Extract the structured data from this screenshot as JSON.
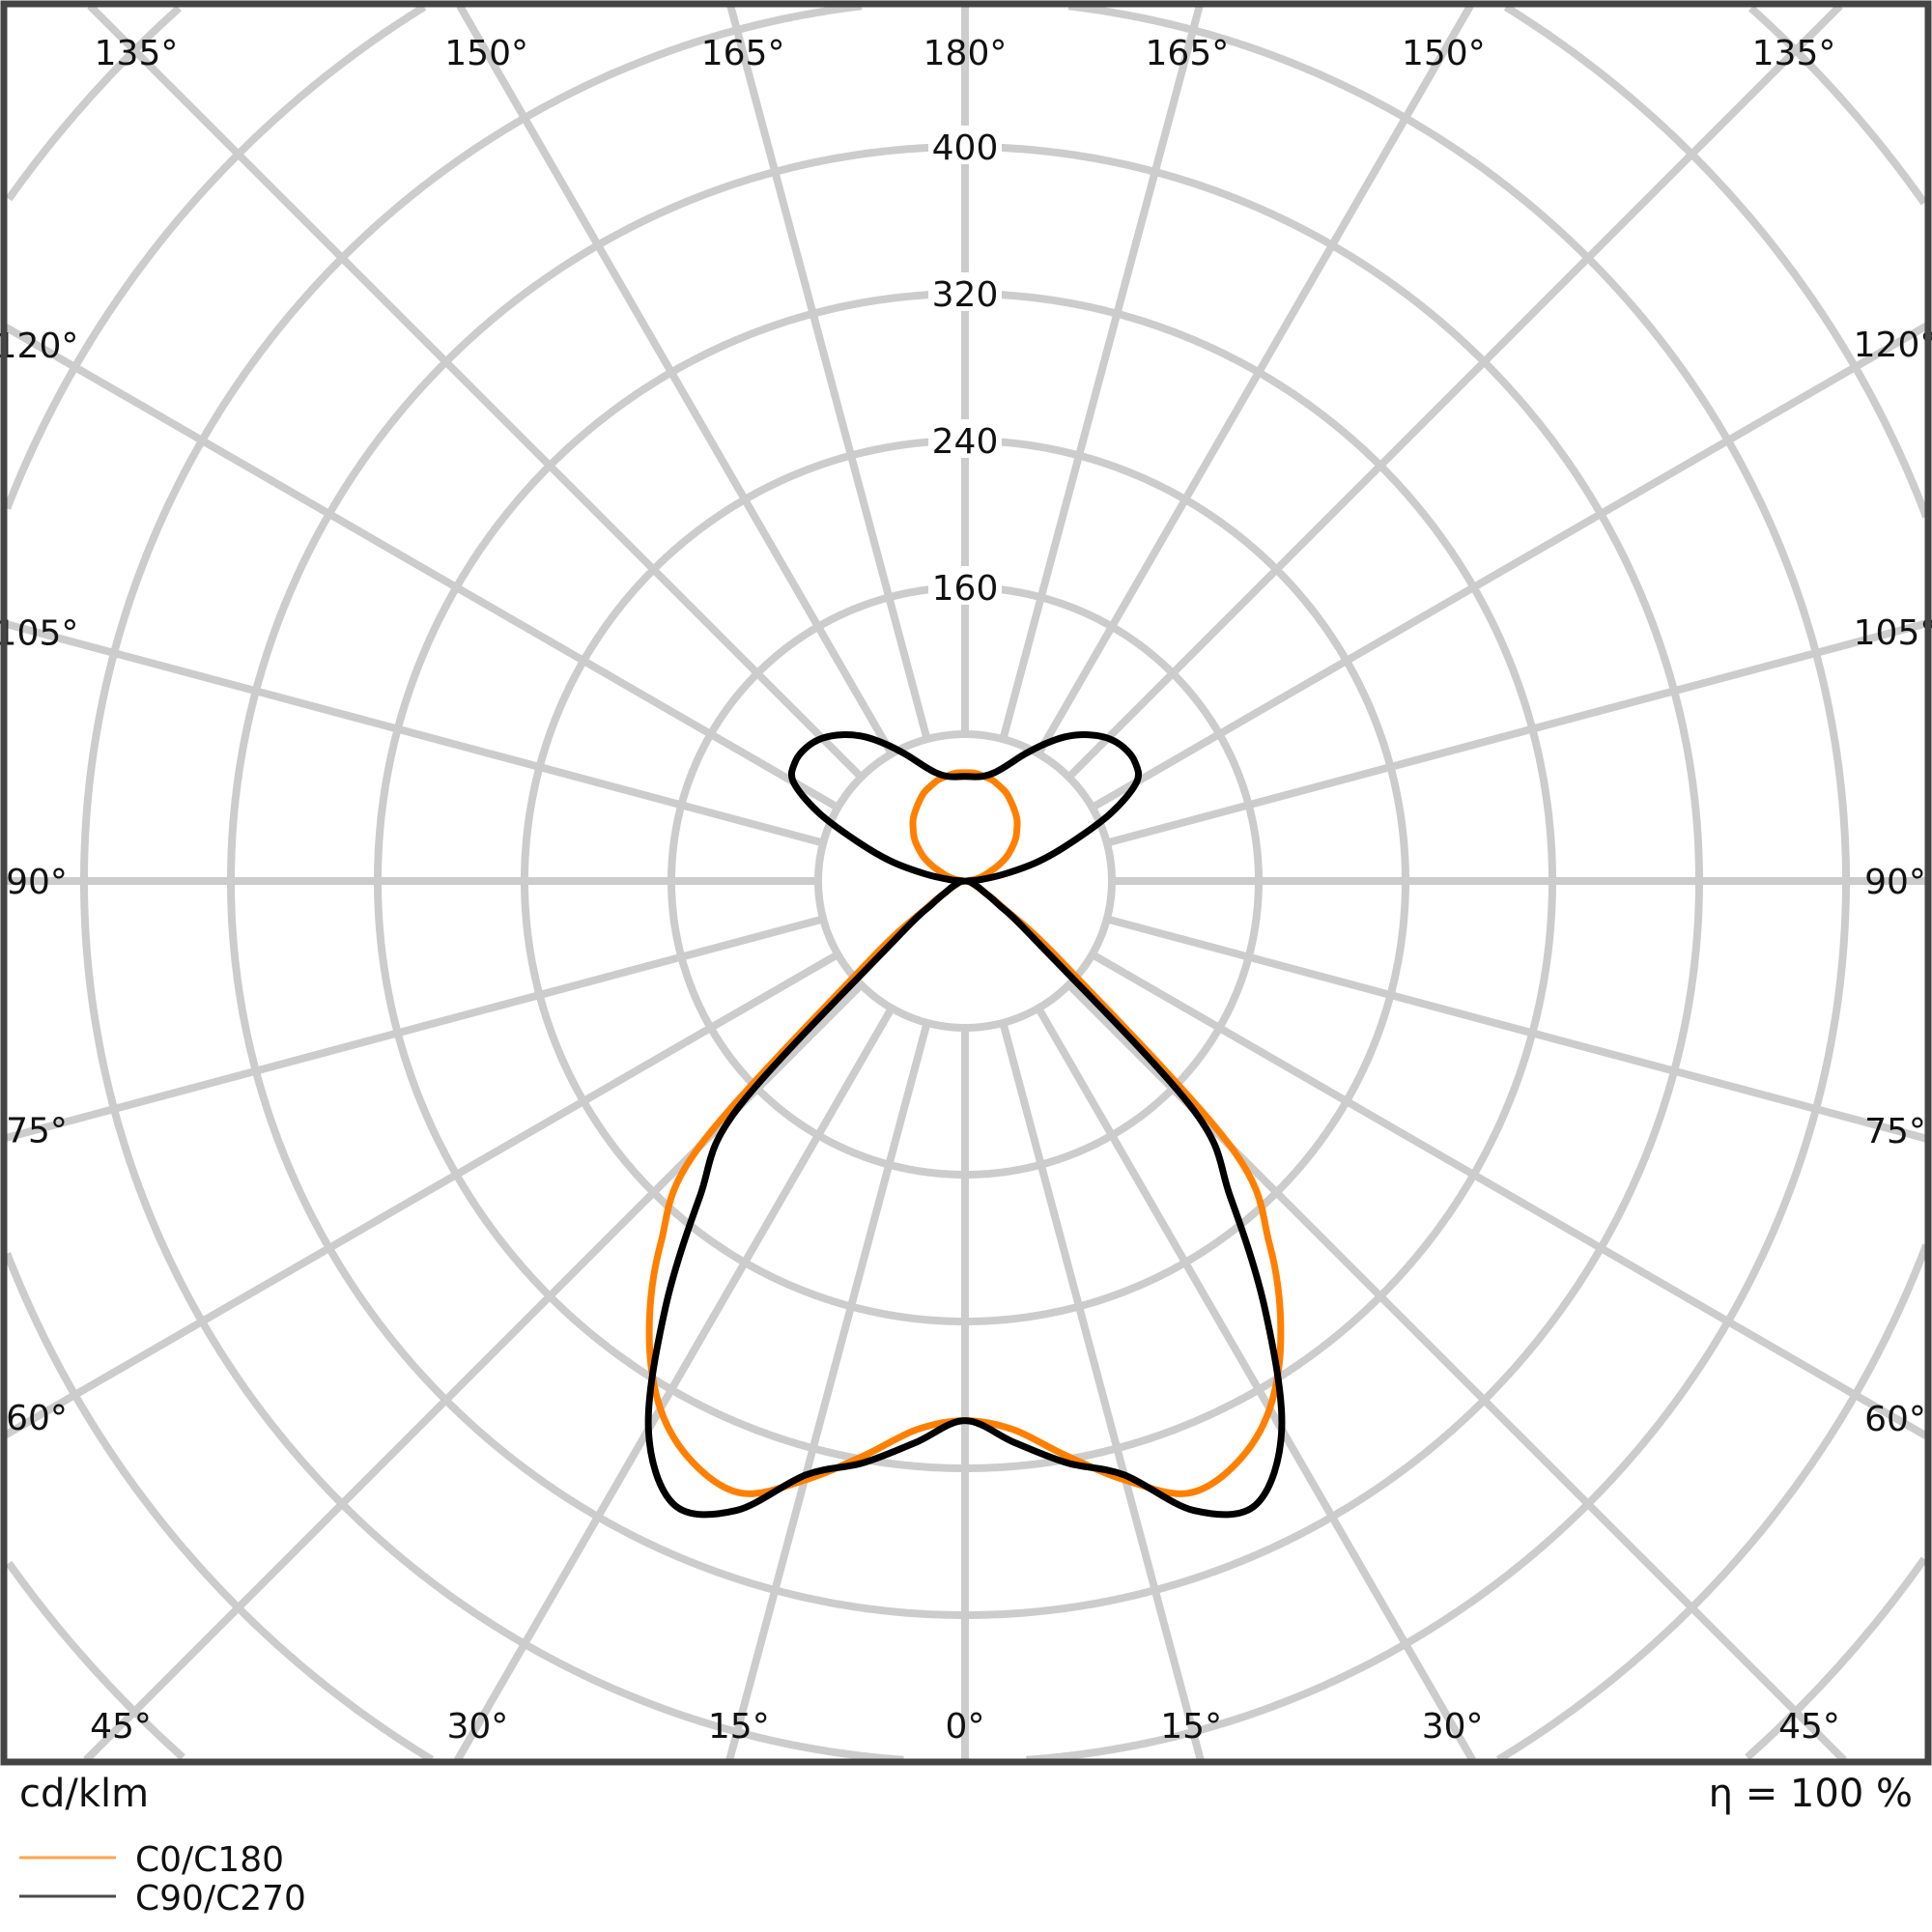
{
  "chart_data": {
    "type": "polar",
    "title": "",
    "unit_label": "cd/klm",
    "efficiency_label": "η = 100 %",
    "radial_ticks": [
      160,
      240,
      320,
      400
    ],
    "radial_grid_step": 80,
    "radial_range": [
      0,
      720
    ],
    "angle_step_deg": 15,
    "angle_labels_top": [
      "135°",
      "150°",
      "165°",
      "180°",
      "165°",
      "150°",
      "135°"
    ],
    "angle_labels_bottom": [
      "45°",
      "30°",
      "15°",
      "0°",
      "15°",
      "30°",
      "45°"
    ],
    "angle_labels_sides": [
      "120°",
      "105°",
      "90°",
      "75°",
      "60°"
    ],
    "grid": true,
    "legend_position": "bottom-left",
    "series": [
      {
        "name": "C0/C180",
        "color": "#ff8000",
        "angles_deg": [
          0,
          5,
          10,
          15,
          20,
          25,
          30,
          35,
          40,
          45,
          50,
          55,
          60,
          65,
          70,
          75,
          80,
          85,
          90,
          95,
          100,
          105,
          110,
          115,
          120,
          125,
          130,
          135,
          140,
          145,
          150,
          155,
          160,
          165,
          170,
          175,
          180
        ],
        "values": [
          294,
          300,
          318,
          338,
          355,
          350,
          332,
          300,
          258,
          205,
          70,
          25,
          12,
          7,
          5,
          3,
          2,
          1,
          0,
          2,
          6,
          10,
          14,
          20,
          26,
          31,
          36,
          40,
          44,
          47,
          50,
          53,
          55,
          57,
          58,
          59,
          59
        ]
      },
      {
        "name": "C90/C270",
        "color": "#000000",
        "angles_deg": [
          0,
          5,
          10,
          15,
          20,
          25,
          30,
          35,
          40,
          45,
          50,
          55,
          60,
          65,
          70,
          75,
          80,
          85,
          90,
          95,
          100,
          105,
          110,
          115,
          120,
          125,
          130,
          135,
          140,
          145,
          150,
          155,
          160,
          165,
          170,
          175,
          180
        ],
        "values": [
          294,
          307,
          322,
          335,
          365,
          375,
          345,
          285,
          225,
          175,
          50,
          22,
          12,
          8,
          5,
          4,
          3,
          2,
          1,
          8,
          22,
          42,
          62,
          88,
          108,
          113,
          113,
          110,
          104,
          96,
          86,
          76,
          67,
          61,
          58,
          57,
          57
        ]
      }
    ]
  },
  "colors": {
    "grid": "#cccccc",
    "frame": "#444444"
  }
}
